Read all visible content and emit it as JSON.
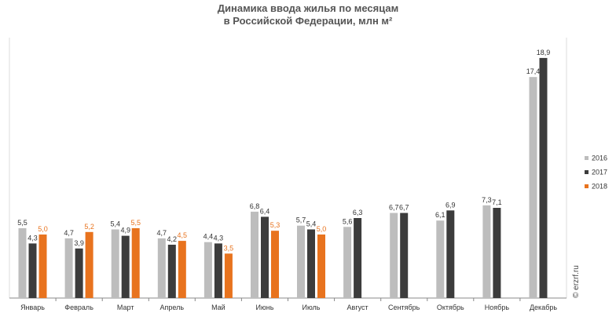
{
  "chart_data": {
    "type": "bar",
    "title": [
      "Динамика ввода жилья по месяцам",
      "в Российской Федерации, млн м²"
    ],
    "categories": [
      "Январь",
      "Февраль",
      "Март",
      "Апрель",
      "Май",
      "Июнь",
      "Июль",
      "Август",
      "Сентябрь",
      "Октябрь",
      "Ноябрь",
      "Декабрь"
    ],
    "series": [
      {
        "name": "2016",
        "color": "#bdbdbd",
        "label_color": "#333333",
        "values": [
          5.5,
          4.7,
          5.4,
          4.7,
          4.4,
          6.8,
          5.7,
          5.6,
          6.7,
          6.1,
          7.3,
          17.4
        ],
        "labels": [
          "5,5",
          "4,7",
          "5,4",
          "4,7",
          "4,4",
          "6,8",
          "5,7",
          "5,6",
          "6,7",
          "6,1",
          "7,3",
          "17,4"
        ]
      },
      {
        "name": "2017",
        "color": "#3c3c3c",
        "label_color": "#333333",
        "values": [
          4.3,
          3.9,
          4.9,
          4.2,
          4.3,
          6.4,
          5.4,
          6.3,
          6.7,
          6.9,
          7.1,
          18.9
        ],
        "labels": [
          "4,3",
          "3,9",
          "4,9",
          "4,2",
          "4,3",
          "6,4",
          "5,4",
          "6,3",
          "6,7",
          "6,9",
          "7,1",
          "18,9"
        ]
      },
      {
        "name": "2018",
        "color": "#e8731e",
        "label_color": "#e8731e",
        "values": [
          5.0,
          5.2,
          5.5,
          4.5,
          3.5,
          5.3,
          5.0,
          null,
          null,
          null,
          null,
          null
        ],
        "labels": [
          "5,0",
          "5,2",
          "5,5",
          "4,5",
          "3,5",
          "5,3",
          "5,0",
          null,
          null,
          null,
          null,
          null
        ]
      }
    ],
    "ylim": [
      0,
      20.5
    ],
    "grid": false,
    "legend_position": "right"
  },
  "watermark": "© erzrf.ru"
}
